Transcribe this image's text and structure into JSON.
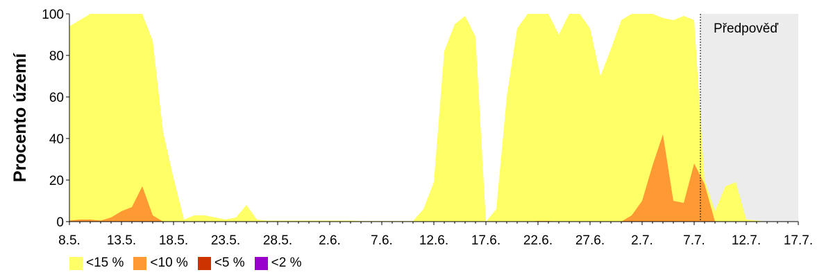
{
  "chart_data": {
    "type": "area",
    "ylabel": "Procento území",
    "xlabel": "",
    "ylim": [
      0,
      100
    ],
    "yticks": [
      0,
      20,
      40,
      60,
      80,
      100
    ],
    "x_unit": "days from 8.5.",
    "xticks": [
      {
        "day": 0,
        "label": "8.5."
      },
      {
        "day": 5,
        "label": "13.5."
      },
      {
        "day": 10,
        "label": "18.5."
      },
      {
        "day": 15,
        "label": "23.5."
      },
      {
        "day": 20,
        "label": "28.5."
      },
      {
        "day": 25,
        "label": "2.6."
      },
      {
        "day": 30,
        "label": "7.6."
      },
      {
        "day": 35,
        "label": "12.6."
      },
      {
        "day": 40,
        "label": "17.6."
      },
      {
        "day": 45,
        "label": "22.6."
      },
      {
        "day": 50,
        "label": "27.6."
      },
      {
        "day": 55,
        "label": "2.7."
      },
      {
        "day": 60,
        "label": "7.7."
      },
      {
        "day": 65,
        "label": "12.7."
      },
      {
        "day": 70,
        "label": "17.7."
      }
    ],
    "xlim": [
      0,
      70
    ],
    "forecast": {
      "start": 60.6,
      "label": "Předpověď",
      "color": "#ececec"
    },
    "grid": false,
    "legend_position": "bottom-left",
    "series": [
      {
        "name": "<15 %",
        "color": "#ffff66",
        "points": [
          [
            0,
            94
          ],
          [
            1,
            97
          ],
          [
            2,
            100
          ],
          [
            3,
            100
          ],
          [
            4,
            100
          ],
          [
            5,
            100
          ],
          [
            6,
            100
          ],
          [
            7,
            100
          ],
          [
            8,
            87
          ],
          [
            9,
            43
          ],
          [
            10,
            21
          ],
          [
            11,
            1
          ],
          [
            12,
            3
          ],
          [
            13,
            3
          ],
          [
            14,
            2
          ],
          [
            15,
            1
          ],
          [
            16,
            2
          ],
          [
            17,
            8
          ],
          [
            18,
            1
          ],
          [
            19,
            0.5
          ],
          [
            20,
            0.5
          ],
          [
            21,
            0.5
          ],
          [
            22,
            0.5
          ],
          [
            23,
            0.5
          ],
          [
            24,
            0.5
          ],
          [
            25,
            0.5
          ],
          [
            26,
            0.5
          ],
          [
            27,
            0.5
          ],
          [
            28,
            0.3
          ],
          [
            29,
            0.3
          ],
          [
            30,
            0.3
          ],
          [
            31,
            0.3
          ],
          [
            32,
            0.3
          ],
          [
            33,
            0.3
          ],
          [
            34,
            6
          ],
          [
            35,
            19
          ],
          [
            36,
            82
          ],
          [
            37,
            95
          ],
          [
            38,
            99
          ],
          [
            39,
            89
          ],
          [
            40,
            0
          ],
          [
            41,
            6
          ],
          [
            42,
            60
          ],
          [
            43,
            93
          ],
          [
            44,
            100
          ],
          [
            45,
            100
          ],
          [
            46,
            100
          ],
          [
            47,
            90
          ],
          [
            48,
            100
          ],
          [
            49,
            100
          ],
          [
            50,
            93
          ],
          [
            51,
            70
          ],
          [
            52,
            83
          ],
          [
            53,
            97
          ],
          [
            54,
            100
          ],
          [
            55,
            100
          ],
          [
            56,
            100
          ],
          [
            57,
            98
          ],
          [
            58,
            97
          ],
          [
            59,
            99
          ],
          [
            60,
            97
          ],
          [
            61,
            20
          ],
          [
            62,
            5
          ],
          [
            63,
            17
          ],
          [
            64,
            19
          ],
          [
            65,
            1
          ],
          [
            66,
            0.5
          ],
          [
            67,
            0
          ],
          [
            70,
            0
          ]
        ]
      },
      {
        "name": "<10 %",
        "color": "#ff9933",
        "points": [
          [
            0,
            0.5
          ],
          [
            1,
            1
          ],
          [
            2,
            1
          ],
          [
            3,
            0.5
          ],
          [
            4,
            2
          ],
          [
            5,
            5
          ],
          [
            6,
            7
          ],
          [
            7,
            17
          ],
          [
            8,
            3
          ],
          [
            9,
            0
          ],
          [
            10,
            0
          ],
          [
            44,
            0
          ],
          [
            45,
            0.3
          ],
          [
            46,
            0.3
          ],
          [
            47,
            0
          ],
          [
            53,
            0
          ],
          [
            54,
            3
          ],
          [
            55,
            10
          ],
          [
            56,
            27
          ],
          [
            57,
            42
          ],
          [
            58,
            10
          ],
          [
            59,
            9
          ],
          [
            60,
            28
          ],
          [
            61,
            18
          ],
          [
            62,
            0
          ],
          [
            70,
            0
          ]
        ]
      },
      {
        "name": "<5 %",
        "color": "#cc3300",
        "points": [
          [
            0,
            0
          ],
          [
            70,
            0
          ]
        ]
      },
      {
        "name": "<2 %",
        "color": "#9900cc",
        "points": [
          [
            0,
            0
          ],
          [
            70,
            0
          ]
        ]
      }
    ]
  }
}
